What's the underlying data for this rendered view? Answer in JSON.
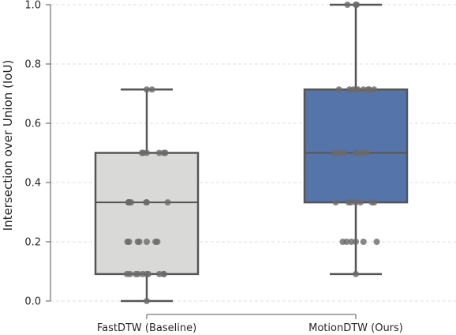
{
  "chart_data": {
    "type": "box",
    "title": "",
    "xlabel": "",
    "ylabel": "Intersection over Union (IoU)",
    "ylim": [
      0.0,
      1.0
    ],
    "yticks": [
      0.0,
      0.2,
      0.4,
      0.6,
      0.8,
      1.0
    ],
    "ytick_labels": [
      "0.0",
      "0.2",
      "0.4",
      "0.6",
      "0.8",
      "1.0"
    ],
    "grid": "horizontal dashed",
    "categories": [
      "FastDTW (Baseline)",
      "MotionDTW (Ours)"
    ],
    "series": [
      {
        "category": "FastDTW (Baseline)",
        "color": "#d9d9d8",
        "whisker_low": 0.0,
        "q1": 0.091,
        "median": 0.333,
        "q3": 0.5,
        "whisker_high": 0.714,
        "points": [
          0.0,
          0.091,
          0.091,
          0.091,
          0.091,
          0.091,
          0.091,
          0.091,
          0.091,
          0.091,
          0.091,
          0.2,
          0.2,
          0.2,
          0.2,
          0.2,
          0.2,
          0.2,
          0.333,
          0.333,
          0.333,
          0.333,
          0.333,
          0.333,
          0.333,
          0.333,
          0.5,
          0.5,
          0.5,
          0.5,
          0.5,
          0.5,
          0.714,
          0.714
        ]
      },
      {
        "category": "MotionDTW (Ours)",
        "color": "#5574aa",
        "whisker_low": 0.091,
        "q1": 0.333,
        "median": 0.5,
        "q3": 0.714,
        "whisker_high": 1.0,
        "points": [
          0.091,
          0.2,
          0.2,
          0.2,
          0.2,
          0.2,
          0.2,
          0.333,
          0.333,
          0.333,
          0.333,
          0.333,
          0.333,
          0.333,
          0.5,
          0.5,
          0.5,
          0.5,
          0.5,
          0.5,
          0.5,
          0.5,
          0.714,
          0.714,
          0.714,
          0.714,
          0.714,
          0.714,
          0.714,
          0.714,
          0.714,
          1.0,
          1.0,
          1.0
        ]
      }
    ],
    "colors": {
      "line": "#555555",
      "point": "#6a6a6a",
      "grid": "#dcdcdc",
      "text": "#262626"
    }
  }
}
